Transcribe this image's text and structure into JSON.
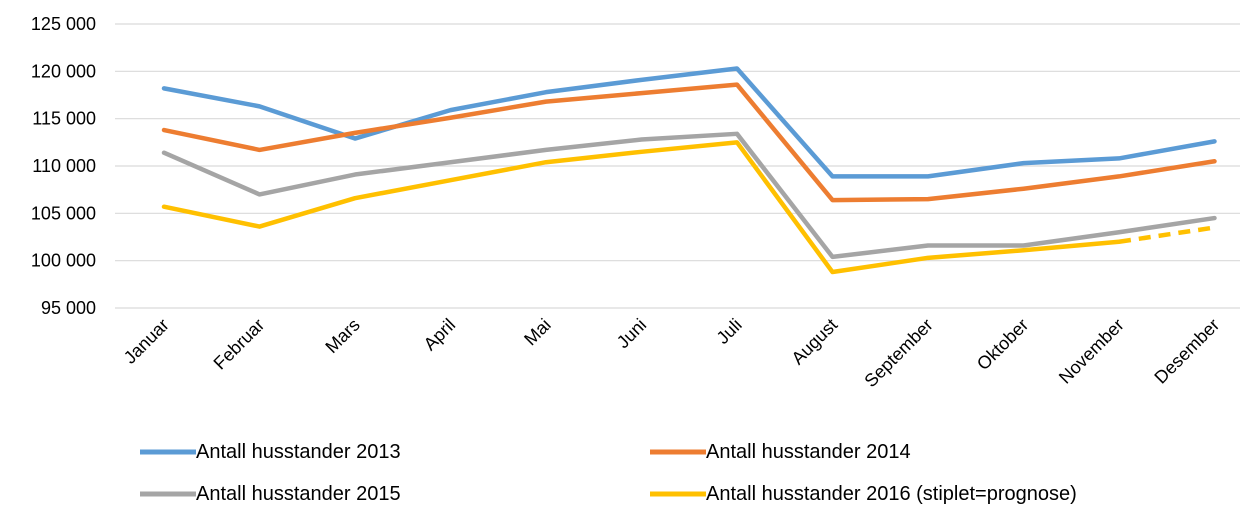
{
  "chart_data": {
    "type": "line",
    "categories": [
      "Januar",
      "Februar",
      "Mars",
      "April",
      "Mai",
      "Juni",
      "Juli",
      "August",
      "September",
      "Oktober",
      "November",
      "Desember"
    ],
    "ylim": [
      95000,
      125000
    ],
    "yticks": [
      95000,
      100000,
      105000,
      110000,
      115000,
      120000,
      125000
    ],
    "ytick_labels": [
      "95 000",
      "100 000",
      "105 000",
      "110 000",
      "115 000",
      "120 000",
      "125 000"
    ],
    "grid": "horizontal",
    "legend_position": "bottom",
    "series": [
      {
        "name": "Antall husstander 2013",
        "color": "#5B9BD5",
        "values": [
          118200,
          116300,
          112900,
          115900,
          117800,
          119100,
          120300,
          108900,
          108900,
          110300,
          110800,
          112600
        ]
      },
      {
        "name": "Antall husstander 2014",
        "color": "#ED7D31",
        "values": [
          113800,
          111700,
          113500,
          115100,
          116800,
          117700,
          118600,
          106400,
          106500,
          107600,
          108900,
          110500
        ]
      },
      {
        "name": "Antall husstander 2015",
        "color": "#A5A5A5",
        "values": [
          111400,
          107000,
          109100,
          110400,
          111700,
          112800,
          113400,
          100400,
          101600,
          101600,
          103000,
          104500
        ]
      },
      {
        "name": "Antall husstander 2016 (stiplet=prognose)",
        "color": "#FFC000",
        "values": [
          105700,
          103600,
          106600,
          108500,
          110400,
          111500,
          112500,
          98800,
          100300,
          101100,
          102000,
          103500
        ],
        "forecast_from_index": 10
      }
    ]
  }
}
